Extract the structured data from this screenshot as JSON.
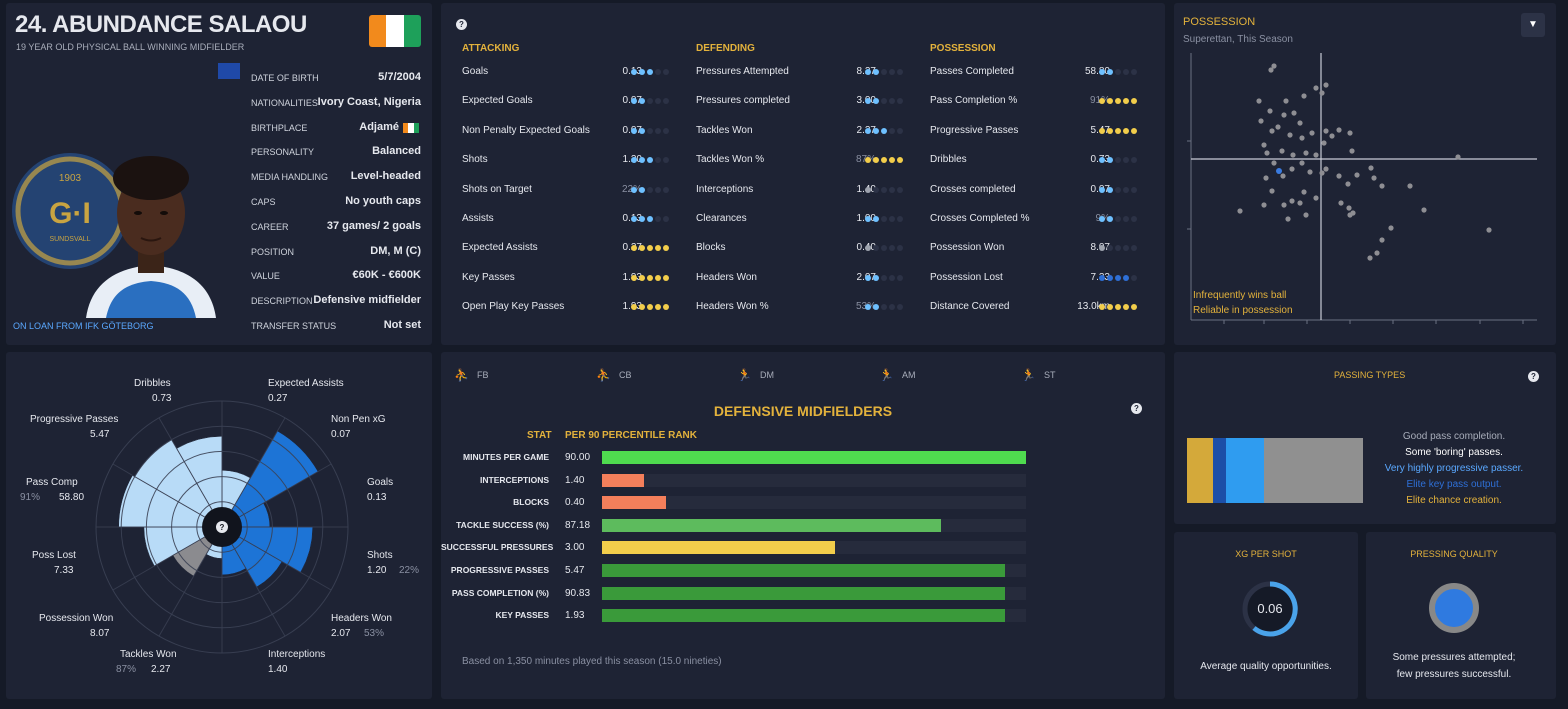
{
  "player": {
    "title": "24. ABUNDANCE SALAOU",
    "subtitle": "19 YEAR OLD PHYSICAL BALL WINNING MIDFIELDER",
    "loan": "ON LOAN FROM IFK GÖTEBORG",
    "club_badge_text": "1903",
    "club_badge_text2": "G·I",
    "club_badge_text3": "SUNDSVALL"
  },
  "info": [
    {
      "label": "DATE OF BIRTH",
      "value": "5/7/2004"
    },
    {
      "label": "NATIONALITIES",
      "value": "Ivory Coast, Nigeria"
    },
    {
      "label": "BIRTHPLACE",
      "value": "Adjamé"
    },
    {
      "label": "PERSONALITY",
      "value": "Balanced"
    },
    {
      "label": "MEDIA HANDLING",
      "value": "Level-headed"
    },
    {
      "label": "CAPS",
      "value": "No youth caps"
    },
    {
      "label": "CAREER",
      "value": "37  games/    2 goals"
    },
    {
      "label": "POSITION",
      "value": "DM, M (C)"
    },
    {
      "label": "VALUE",
      "value": "€60K - €600K"
    },
    {
      "label": "DESCRIPTION",
      "value": "Defensive midfielder"
    },
    {
      "label": "TRANSFER STATUS",
      "value": "Not set"
    }
  ],
  "stats": {
    "attacking": {
      "title": "ATTACKING",
      "rows": [
        {
          "name": "Goals",
          "value": "0.13",
          "dots": 3,
          "color": "blue"
        },
        {
          "name": "Expected Goals",
          "value": "0.07",
          "dots": 2,
          "color": "blue"
        },
        {
          "name": "Non Penalty Expected Goals",
          "value": "0.07",
          "dots": 2,
          "color": "blue"
        },
        {
          "name": "Shots",
          "value": "1.20",
          "dots": 3,
          "color": "blue"
        },
        {
          "name": "Shots on Target",
          "value": "22%",
          "dots": 2,
          "color": "blue",
          "dim": true
        },
        {
          "name": "Assists",
          "value": "0.13",
          "dots": 3,
          "color": "blue"
        },
        {
          "name": "Expected Assists",
          "value": "0.27",
          "dots": 5,
          "color": "gold"
        },
        {
          "name": "Key Passes",
          "value": "1.93",
          "dots": 5,
          "color": "gold"
        },
        {
          "name": "Open Play Key Passes",
          "value": "1.93",
          "dots": 5,
          "color": "gold"
        }
      ]
    },
    "defending": {
      "title": "DEFENDING",
      "rows": [
        {
          "name": "Pressures Attempted",
          "value": "8.27",
          "dots": 2,
          "color": "blue"
        },
        {
          "name": "Pressures completed",
          "value": "3.00",
          "dots": 2,
          "color": "blue"
        },
        {
          "name": "Tackles Won",
          "value": "2.27",
          "dots": 3,
          "color": "blue"
        },
        {
          "name": "Tackles Won %",
          "value": "87%",
          "dots": 5,
          "color": "gold",
          "dim": true
        },
        {
          "name": "Interceptions",
          "value": "1.40",
          "dots": 1,
          "color": "grey"
        },
        {
          "name": "Clearances",
          "value": "1.00",
          "dots": 2,
          "color": "blue"
        },
        {
          "name": "Blocks",
          "value": "0.40",
          "dots": 1,
          "color": "grey"
        },
        {
          "name": "Headers Won",
          "value": "2.07",
          "dots": 2,
          "color": "blue"
        },
        {
          "name": "Headers Won %",
          "value": "53%",
          "dots": 2,
          "color": "blue",
          "dim": true
        }
      ]
    },
    "possession": {
      "title": "POSSESSION",
      "rows": [
        {
          "name": "Passes Completed",
          "value": "58.80",
          "dots": 2,
          "color": "blue"
        },
        {
          "name": "Pass Completion %",
          "value": "91%",
          "dots": 5,
          "color": "gold",
          "dim": true
        },
        {
          "name": "Progressive Passes",
          "value": "5.47",
          "dots": 5,
          "color": "gold"
        },
        {
          "name": "Dribbles",
          "value": "0.73",
          "dots": 2,
          "color": "blue"
        },
        {
          "name": "Crosses completed",
          "value": "0.07",
          "dots": 2,
          "color": "blue"
        },
        {
          "name": "Crosses Completed %",
          "value": "9%",
          "dots": 2,
          "color": "blue",
          "dim": true
        },
        {
          "name": "Possession Won",
          "value": "8.07",
          "dots": 1,
          "color": "grey"
        },
        {
          "name": "Possession Lost",
          "value": "7.33",
          "dots": 4,
          "color": "darkblue"
        },
        {
          "name": "Distance Covered",
          "value": "13.0km",
          "dots": 5,
          "color": "gold"
        }
      ]
    }
  },
  "scatter": {
    "title": "POSSESSION",
    "subtitle": "Superettan, This Season",
    "note1": "Infrequently wins ball",
    "note2": "Reliable in possession"
  },
  "radar": {
    "center_icon": "question-icon",
    "labels": [
      {
        "name": "Dribbles",
        "value": "0.73"
      },
      {
        "name": "Expected Assists",
        "value": "0.27"
      },
      {
        "name": "Non Pen xG",
        "value": "0.07"
      },
      {
        "name": "Goals",
        "value": "0.13"
      },
      {
        "name": "Shots",
        "value": "1.20",
        "pct": "22%"
      },
      {
        "name": "Headers Won",
        "value": "2.07",
        "pct": "53%"
      },
      {
        "name": "Interceptions",
        "value": "1.40"
      },
      {
        "name": "Tackles Won",
        "value": "2.27",
        "pct": "87%"
      },
      {
        "name": "Possession Won",
        "value": "8.07"
      },
      {
        "name": "Poss Lost",
        "value": "7.33"
      },
      {
        "name": "Pass Comp",
        "value": "58.80",
        "pct": "91%"
      },
      {
        "name": "Progressive Passes",
        "value": "5.47"
      }
    ],
    "values": [
      0.45,
      0.88,
      0.38,
      0.72,
      0.55,
      0.38,
      0.25,
      0.45,
      0.62,
      0.82,
      0.8,
      0.72
    ]
  },
  "positions": [
    {
      "label": "FB"
    },
    {
      "label": "CB"
    },
    {
      "label": "DM"
    },
    {
      "label": "AM"
    },
    {
      "label": "ST"
    }
  ],
  "chart_data": {
    "type": "bar",
    "title": "DEFENSIVE MIDFIELDERS",
    "col_stat": "STAT",
    "col_per90": "PER 90",
    "col_rank": "PERCENTILE RANK",
    "categories": [
      "MINUTES PER GAME",
      "INTERCEPTIONS",
      "BLOCKS",
      "TACKLE SUCCESS (%)",
      "SUCCESSFUL PRESSURES",
      "PROGRESSIVE PASSES",
      "PASS COMPLETION (%)",
      "KEY PASSES"
    ],
    "per90": [
      "90.00",
      "1.40",
      "0.40",
      "87.18",
      "3.00",
      "5.47",
      "90.83",
      "1.93"
    ],
    "values": [
      100,
      10,
      15,
      80,
      55,
      95,
      95,
      95
    ],
    "colors": [
      "#4fdb4f",
      "#f47f5b",
      "#f47f5b",
      "#5dbb5d",
      "#f2cd4b",
      "#3a9a3a",
      "#3a9a3a",
      "#3a9a3a"
    ],
    "xlim": [
      0,
      100
    ],
    "footnote": "Based on 1,350 minutes played this season (15.0 nineties)"
  },
  "passing": {
    "title": "PASSING TYPES",
    "segments": [
      {
        "color": "#d4a93a",
        "frac": 0.15
      },
      {
        "color": "#1c4fa8",
        "frac": 0.07
      },
      {
        "color": "#2f9cf0",
        "frac": 0.22
      },
      {
        "color": "#909090",
        "frac": 0.56
      }
    ],
    "lines": [
      {
        "text": "Good pass completion.",
        "color": "#a8adba"
      },
      {
        "text": "Some 'boring' passes.",
        "color": "#ffffff"
      },
      {
        "text": "Very highly progressive passer.",
        "color": "#5aa8ff"
      },
      {
        "text": "Elite key pass output.",
        "color": "#2e6fd6"
      },
      {
        "text": "Elite chance creation.",
        "color": "#e3b23c"
      }
    ]
  },
  "xg": {
    "title": "XG PER SHOT",
    "value": "0.06",
    "desc": "Average quality opportunities."
  },
  "pressing": {
    "title": "PRESSING QUALITY",
    "desc1": "Some pressures attempted;",
    "desc2": "few pressures successful."
  }
}
